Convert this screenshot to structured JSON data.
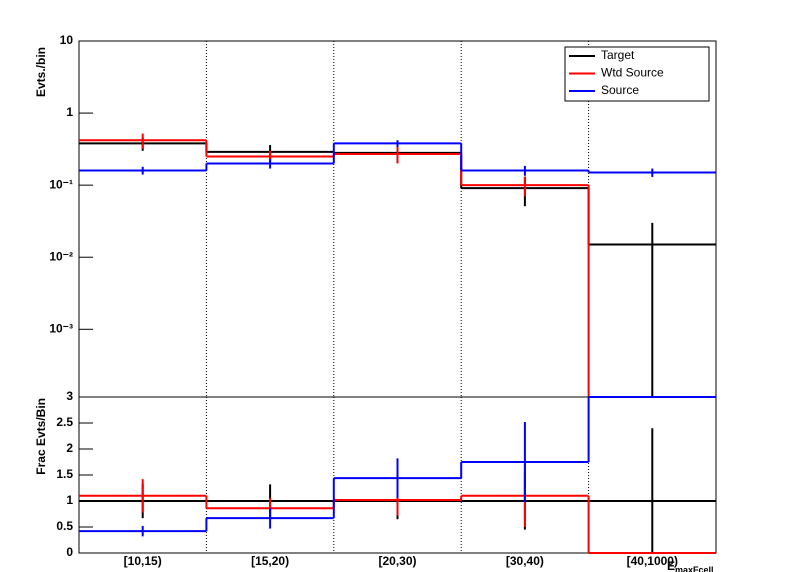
{
  "chart_data": [
    {
      "type": "step",
      "y_label": "Evts./bin",
      "log_y": true,
      "grid_x": true,
      "categories": [
        "[10,15)",
        "[15,20)",
        "[20,30)",
        "[30,40)",
        "[40,1000)"
      ],
      "ylim": [
        0.000115,
        10
      ],
      "yticks": [
        {
          "value": 0.001,
          "label": "10⁻³"
        },
        {
          "value": 0.01,
          "label": "10⁻²"
        },
        {
          "value": 0.1,
          "label": "10⁻¹"
        },
        1,
        10
      ],
      "legend": "top-right",
      "series": [
        {
          "name": "Target",
          "color": "#000000",
          "values": [
            0.38,
            0.29,
            0.28,
            0.091,
            0.015
          ],
          "errors": [
            0.08,
            0.07,
            0.07,
            0.04,
            0.015
          ]
        },
        {
          "name": "Wtd Source",
          "color": "#ff0000",
          "values": [
            0.42,
            0.25,
            0.27,
            0.1,
            0
          ],
          "errors": [
            0.1,
            0.05,
            0.07,
            0.03,
            0
          ]
        },
        {
          "name": "Source",
          "color": "#0000ff",
          "values": [
            0.16,
            0.2,
            0.38,
            0.16,
            0.15
          ],
          "errors": [
            0.02,
            0.03,
            0.04,
            0.025,
            0.02
          ]
        }
      ]
    },
    {
      "type": "step",
      "y_label": "Frac Evts/Bin",
      "x_label": "E",
      "x_label_sub": "maxFcell",
      "log_y": false,
      "grid_x": true,
      "categories": [
        "[10,15)",
        "[15,20)",
        "[20,30)",
        "[30,40)",
        "[40,1000)"
      ],
      "ylim": [
        0,
        3
      ],
      "yticks": [
        0,
        0.5,
        1,
        1.5,
        2,
        2.5,
        3
      ],
      "series": [
        {
          "name": "Target",
          "color": "#000000",
          "values": [
            1,
            1,
            1,
            1,
            1
          ],
          "errors": [
            0.33,
            0.32,
            0.35,
            0.55,
            1.4
          ]
        },
        {
          "name": "Wtd Source",
          "color": "#ff0000",
          "values": [
            1.1,
            0.86,
            1.02,
            1.1,
            0
          ],
          "errors": [
            0.32,
            0.2,
            0.3,
            0.6,
            0
          ]
        },
        {
          "name": "Source",
          "color": "#0000ff",
          "values": [
            0.42,
            0.67,
            1.44,
            1.75,
            3
          ],
          "errors": [
            0.1,
            0.2,
            0.38,
            0.77,
            0
          ]
        }
      ]
    }
  ]
}
